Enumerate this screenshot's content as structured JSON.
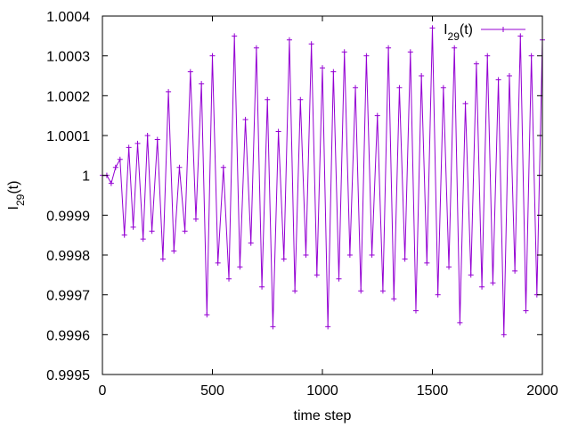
{
  "chart_data": {
    "type": "line",
    "title": "",
    "xlabel": "time step",
    "ylabel": {
      "base": "I",
      "sub": "29",
      "suffix": "(t)"
    },
    "xlim": [
      0,
      2000
    ],
    "ylim": [
      0.9995,
      1.0004
    ],
    "xticks": [
      0,
      500,
      1000,
      1500,
      2000
    ],
    "xtick_labels": [
      "0",
      "500",
      "1000",
      "1500",
      "2000"
    ],
    "yticks": [
      0.9995,
      0.9996,
      0.9997,
      0.9998,
      0.9999,
      1.0,
      1.0001,
      1.0002,
      1.0003,
      1.0004
    ],
    "ytick_labels": [
      "0.9995",
      "0.9996",
      "0.9997",
      "0.9998",
      "0.9999",
      "1",
      "1.0001",
      "1.0002",
      "1.0003",
      "1.0004"
    ],
    "grid": false,
    "legend_position": "top-right",
    "marker": "plus",
    "series": [
      {
        "name": {
          "base": "I",
          "sub": "29",
          "suffix": "(t)"
        },
        "color": "#9400d3",
        "x": [
          0,
          20,
          40,
          60,
          80,
          100,
          120,
          140,
          160,
          185,
          205,
          225,
          250,
          275,
          300,
          325,
          350,
          375,
          400,
          425,
          450,
          475,
          500,
          525,
          550,
          575,
          600,
          625,
          650,
          675,
          700,
          725,
          750,
          775,
          800,
          825,
          850,
          875,
          900,
          925,
          950,
          975,
          1000,
          1025,
          1050,
          1075,
          1100,
          1125,
          1150,
          1175,
          1200,
          1225,
          1250,
          1275,
          1300,
          1325,
          1350,
          1375,
          1400,
          1425,
          1450,
          1475,
          1500,
          1525,
          1550,
          1575,
          1600,
          1625,
          1650,
          1675,
          1700,
          1725,
          1750,
          1775,
          1800,
          1825,
          1850,
          1875,
          1900,
          1925,
          1950,
          1975,
          2000
        ],
        "y": [
          1.0,
          1.0,
          0.99998,
          1.00002,
          1.00004,
          0.99985,
          1.00007,
          0.99987,
          1.00008,
          0.99984,
          1.0001,
          0.99986,
          1.00009,
          0.99979,
          1.00021,
          0.99981,
          1.00002,
          0.99986,
          1.00026,
          0.99989,
          1.00023,
          0.99965,
          1.0003,
          0.99978,
          1.00002,
          0.99974,
          1.00035,
          0.99977,
          1.00014,
          0.99983,
          1.00032,
          0.99972,
          1.00019,
          0.99962,
          1.00011,
          0.99979,
          1.00034,
          0.99971,
          1.00019,
          0.9998,
          1.00033,
          0.99975,
          1.00027,
          0.99962,
          1.00026,
          0.99974,
          1.00031,
          0.9998,
          1.00022,
          0.99971,
          1.0003,
          0.9998,
          1.00015,
          0.99971,
          1.00032,
          0.99969,
          1.00022,
          0.99979,
          1.00031,
          0.99966,
          1.00025,
          0.99978,
          1.00037,
          0.9997,
          1.00022,
          0.99977,
          1.00032,
          0.99963,
          1.00018,
          0.99975,
          1.00028,
          0.99972,
          1.0003,
          0.99973,
          1.00024,
          0.9996,
          1.00025,
          0.99976,
          1.00035,
          0.99966,
          1.0003,
          0.9997,
          1.00034
        ]
      }
    ]
  }
}
